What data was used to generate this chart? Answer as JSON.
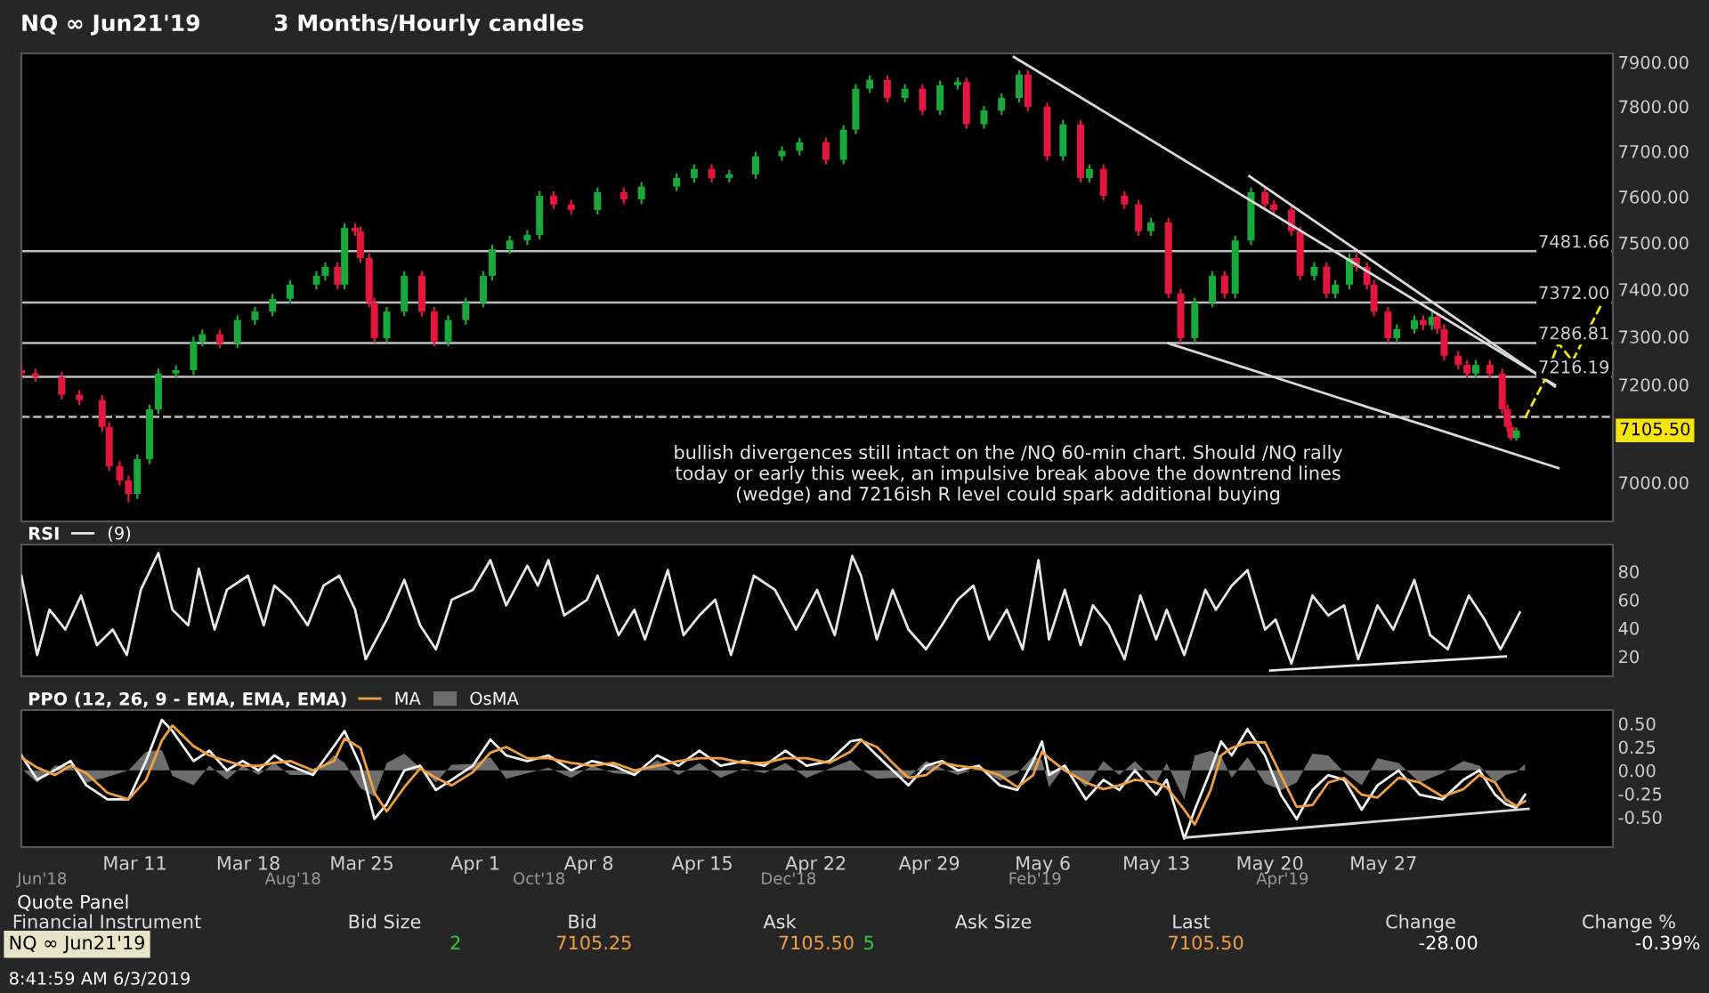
{
  "chart_data": [
    {
      "type": "candlestick",
      "title": "NQ ∞ Jun21'19",
      "subtitle": "3 Months/Hourly candles",
      "log": true,
      "tick_labels": "y",
      "x": [
        "2019-03-04T00:00",
        "2019-03-04T20:48",
        "2019-03-06T11:48",
        "2019-03-07T13:48",
        "2019-03-08T23:36",
        "2019-03-09T10:00",
        "2019-03-10T01:36",
        "2019-03-10T14:36",
        "2019-03-11T03:36",
        "2019-03-11T21:48",
        "2019-03-12T10:48",
        "2019-03-13T12:48",
        "2019-03-14T14:48",
        "2019-03-15T03:48",
        "2019-03-16T05:48",
        "2019-03-17T07:48",
        "2019-03-18T09:48",
        "2019-03-19T11:48",
        "2019-03-20T13:48",
        "2019-03-22T04:48",
        "2019-03-22T17:48",
        "2019-03-23T12:00",
        "2019-03-23T22:24",
        "2019-03-24T14:00",
        "2019-03-24T21:48",
        "2019-03-25T10:48",
        "2019-03-25T18:36",
        "2019-03-26T12:48",
        "2019-03-27T14:48",
        "2019-03-28T16:48",
        "2019-03-29T11:00",
        "2019-03-30T07:48",
        "2019-03-31T09:48",
        "2019-04-01T11:48",
        "2019-04-02T00:48",
        "2019-04-03T02:48",
        "2019-04-04T04:48",
        "2019-04-04T23:00",
        "2019-04-05T19:48",
        "2019-04-06T21:48",
        "2019-04-08T12:48",
        "2019-04-10T03:48",
        "2019-04-11T05:48",
        "2019-04-13T09:48",
        "2019-04-14T11:48",
        "2019-04-15T13:48",
        "2019-04-16T15:48",
        "2019-04-18T06:48",
        "2019-04-19T21:48",
        "2019-04-20T23:48",
        "2019-04-22T14:48",
        "2019-04-23T16:48",
        "2019-04-24T11:00",
        "2019-04-25T07:48",
        "2019-04-26T09:48",
        "2019-04-27T11:48",
        "2019-04-28T13:48",
        "2019-04-29T15:48",
        "2019-04-30T17:48",
        "2019-05-01T06:48",
        "2019-05-02T08:48",
        "2019-05-03T10:48",
        "2019-05-04T12:48",
        "2019-05-05T01:48",
        "2019-05-06T06:24",
        "2019-05-07T05:48",
        "2019-05-08T07:48",
        "2019-05-08T20:48",
        "2019-05-09T17:36",
        "2019-05-11T00:48",
        "2019-05-11T21:36",
        "2019-05-12T15:48",
        "2019-05-13T17:48",
        "2019-05-14T12:00",
        "2019-05-15T08:48",
        "2019-05-16T10:48",
        "2019-05-17T05:00",
        "2019-05-17T20:36",
        "2019-05-18T20:00",
        "2019-05-19T16:48",
        "2019-05-20T05:48",
        "2019-05-21T07:48",
        "2019-05-21T20:48",
        "2019-05-22T17:36",
        "2019-05-23T11:48",
        "2019-05-24T00:48",
        "2019-05-24T21:36",
        "2019-05-25T08:00",
        "2019-05-25T23:36",
        "2019-05-26T10:00",
        "2019-05-27T06:48",
        "2019-05-27T19:48",
        "2019-05-28T21:48",
        "2019-05-29T10:48",
        "2019-05-29T23:48",
        "2019-05-30T07:36",
        "2019-05-30T18:00",
        "2019-05-31T14:48",
        "2019-06-01T03:48",
        "2019-06-01T16:48",
        "2019-06-02T13:36",
        "2019-06-03T07:48",
        "2019-06-03T15:36",
        "2019-06-03T20:48",
        "2019-06-04T04:36"
      ],
      "ohlc": [
        [
          7230,
          7240,
          7213,
          7223
        ],
        [
          7223,
          7233,
          7206,
          7216
        ],
        [
          7216,
          7226,
          7169,
          7179
        ],
        [
          7179,
          7189,
          7158,
          7168
        ],
        [
          7168,
          7178,
          7103,
          7113
        ],
        [
          7113,
          7123,
          7023,
          7033
        ],
        [
          7033,
          7043,
          6994,
          7004
        ],
        [
          7004,
          7014,
          6960,
          6977
        ],
        [
          6977,
          7057,
          6967,
          7047
        ],
        [
          7047,
          7159,
          7037,
          7149
        ],
        [
          7149,
          7233,
          7139,
          7223
        ],
        [
          7223,
          7240,
          7213,
          7230
        ],
        [
          7230,
          7300,
          7220,
          7290
        ],
        [
          7290,
          7315,
          7280,
          7305
        ],
        [
          7305,
          7315,
          7276,
          7286
        ],
        [
          7286,
          7345,
          7276,
          7335
        ],
        [
          7335,
          7363,
          7325,
          7353
        ],
        [
          7353,
          7390,
          7343,
          7380
        ],
        [
          7380,
          7420,
          7370,
          7410
        ],
        [
          7410,
          7439,
          7400,
          7429
        ],
        [
          7429,
          7458,
          7419,
          7448
        ],
        [
          7448,
          7458,
          7400,
          7410
        ],
        [
          7410,
          7542,
          7400,
          7532
        ],
        [
          7532,
          7542,
          7515,
          7525
        ],
        [
          7525,
          7535,
          7457,
          7467
        ],
        [
          7467,
          7477,
          7362,
          7372
        ],
        [
          7372,
          7382,
          7287,
          7297
        ],
        [
          7297,
          7363,
          7287,
          7353
        ],
        [
          7353,
          7439,
          7343,
          7429
        ],
        [
          7429,
          7439,
          7343,
          7353
        ],
        [
          7353,
          7363,
          7280,
          7290
        ],
        [
          7290,
          7345,
          7280,
          7335
        ],
        [
          7335,
          7382,
          7325,
          7372
        ],
        [
          7372,
          7439,
          7362,
          7429
        ],
        [
          7429,
          7496,
          7419,
          7486
        ],
        [
          7486,
          7515,
          7476,
          7505
        ],
        [
          7505,
          7527,
          7495,
          7517
        ],
        [
          7517,
          7612,
          7507,
          7602
        ],
        [
          7602,
          7612,
          7573,
          7583
        ],
        [
          7583,
          7593,
          7561,
          7571
        ],
        [
          7571,
          7620,
          7561,
          7610
        ],
        [
          7610,
          7620,
          7584,
          7594
        ],
        [
          7594,
          7632,
          7584,
          7622
        ],
        [
          7622,
          7651,
          7612,
          7641
        ],
        [
          7641,
          7671,
          7631,
          7661
        ],
        [
          7661,
          7671,
          7631,
          7641
        ],
        [
          7641,
          7659,
          7631,
          7649
        ],
        [
          7649,
          7699,
          7639,
          7689
        ],
        [
          7689,
          7711,
          7679,
          7701
        ],
        [
          7701,
          7730,
          7691,
          7720
        ],
        [
          7720,
          7730,
          7671,
          7681
        ],
        [
          7681,
          7758,
          7671,
          7748
        ],
        [
          7748,
          7850,
          7738,
          7840
        ],
        [
          7840,
          7870,
          7830,
          7860
        ],
        [
          7860,
          7870,
          7809,
          7819
        ],
        [
          7819,
          7850,
          7809,
          7840
        ],
        [
          7840,
          7850,
          7781,
          7791
        ],
        [
          7791,
          7858,
          7781,
          7848
        ],
        [
          7848,
          7865,
          7838,
          7855
        ],
        [
          7855,
          7865,
          7750,
          7760
        ],
        [
          7760,
          7801,
          7750,
          7791
        ],
        [
          7791,
          7829,
          7781,
          7819
        ],
        [
          7819,
          7882,
          7809,
          7872
        ],
        [
          7872,
          7882,
          7789,
          7799
        ],
        [
          7799,
          7809,
          7679,
          7689
        ],
        [
          7689,
          7770,
          7679,
          7760
        ],
        [
          7760,
          7770,
          7631,
          7641
        ],
        [
          7641,
          7671,
          7631,
          7661
        ],
        [
          7661,
          7671,
          7592,
          7602
        ],
        [
          7602,
          7612,
          7573,
          7583
        ],
        [
          7583,
          7593,
          7515,
          7525
        ],
        [
          7525,
          7554,
          7515,
          7544
        ],
        [
          7544,
          7554,
          7381,
          7391
        ],
        [
          7391,
          7401,
          7287,
          7297
        ],
        [
          7297,
          7382,
          7287,
          7372
        ],
        [
          7372,
          7439,
          7362,
          7429
        ],
        [
          7429,
          7439,
          7381,
          7391
        ],
        [
          7391,
          7515,
          7381,
          7505
        ],
        [
          7505,
          7620,
          7495,
          7610
        ],
        [
          7610,
          7620,
          7573,
          7583
        ],
        [
          7583,
          7593,
          7561,
          7571
        ],
        [
          7571,
          7581,
          7515,
          7525
        ],
        [
          7525,
          7535,
          7419,
          7429
        ],
        [
          7429,
          7458,
          7419,
          7448
        ],
        [
          7448,
          7458,
          7381,
          7391
        ],
        [
          7391,
          7420,
          7381,
          7410
        ],
        [
          7410,
          7477,
          7400,
          7467
        ],
        [
          7467,
          7477,
          7438,
          7448
        ],
        [
          7448,
          7458,
          7400,
          7410
        ],
        [
          7410,
          7420,
          7343,
          7353
        ],
        [
          7353,
          7363,
          7287,
          7297
        ],
        [
          7297,
          7326,
          7287,
          7316
        ],
        [
          7316,
          7345,
          7306,
          7335
        ],
        [
          7335,
          7345,
          7314,
          7324
        ],
        [
          7324,
          7352,
          7314,
          7342
        ],
        [
          7342,
          7352,
          7306,
          7316
        ],
        [
          7316,
          7326,
          7250,
          7260
        ],
        [
          7260,
          7270,
          7231,
          7241
        ],
        [
          7241,
          7251,
          7213,
          7223
        ],
        [
          7223,
          7251,
          7213,
          7241
        ],
        [
          7241,
          7251,
          7213,
          7223
        ],
        [
          7223,
          7233,
          7139,
          7149
        ],
        [
          7149,
          7159,
          7103,
          7113
        ],
        [
          7113,
          7123,
          7085,
          7090
        ],
        [
          7090,
          7112,
          7085,
          7105.5
        ]
      ],
      "colors": [
        "#e3173e",
        "#e3173e",
        "#e3173e",
        "#e3173e",
        "#e3173e",
        "#e3173e",
        "#e3173e",
        "#e3173e",
        "#19a83a",
        "#19a83a",
        "#19a83a",
        "#19a83a",
        "#19a83a",
        "#19a83a",
        "#e3173e",
        "#19a83a",
        "#19a83a",
        "#19a83a",
        "#19a83a",
        "#19a83a",
        "#19a83a",
        "#e3173e",
        "#19a83a",
        "#e3173e",
        "#e3173e",
        "#e3173e",
        "#e3173e",
        "#19a83a",
        "#19a83a",
        "#e3173e",
        "#e3173e",
        "#19a83a",
        "#19a83a",
        "#19a83a",
        "#19a83a",
        "#19a83a",
        "#19a83a",
        "#19a83a",
        "#e3173e",
        "#e3173e",
        "#19a83a",
        "#e3173e",
        "#19a83a",
        "#19a83a",
        "#19a83a",
        "#e3173e",
        "#19a83a",
        "#19a83a",
        "#19a83a",
        "#19a83a",
        "#e3173e",
        "#19a83a",
        "#19a83a",
        "#19a83a",
        "#e3173e",
        "#19a83a",
        "#e3173e",
        "#19a83a",
        "#19a83a",
        "#e3173e",
        "#19a83a",
        "#19a83a",
        "#19a83a",
        "#e3173e",
        "#e3173e",
        "#19a83a",
        "#e3173e",
        "#19a83a",
        "#e3173e",
        "#e3173e",
        "#e3173e",
        "#19a83a",
        "#e3173e",
        "#e3173e",
        "#19a83a",
        "#19a83a",
        "#e3173e",
        "#19a83a",
        "#19a83a",
        "#e3173e",
        "#e3173e",
        "#e3173e",
        "#e3173e",
        "#19a83a",
        "#e3173e",
        "#19a83a",
        "#19a83a",
        "#e3173e",
        "#e3173e",
        "#e3173e",
        "#e3173e",
        "#19a83a",
        "#19a83a",
        "#e3173e",
        "#19a83a",
        "#e3173e",
        "#e3173e",
        "#e3173e",
        "#e3173e",
        "#19a83a",
        "#e3173e",
        "#e3173e",
        "#e3173e",
        "#e3173e",
        "#19a83a"
      ],
      "series": [
        {
          "type": "line",
          "color": "#d9d9d9",
          "x": [
            "2019-05-04T05:00",
            "2019-06-06T13:48"
          ],
          "values": [
            7912,
            7199
          ]
        },
        {
          "type": "line",
          "color": "#d9d9d9",
          "x": [
            "2019-05-18T17:24",
            "2019-06-06T13:48"
          ],
          "values": [
            7645,
            7196
          ]
        },
        {
          "type": "line",
          "color": "#d9d9d9",
          "x": [
            "2019-05-13T17:48",
            "2019-06-06T19:00"
          ],
          "values": [
            7286,
            7029
          ]
        },
        {
          "type": "line",
          "color": "#f5e50a",
          "line_style": "dashed",
          "x": [
            "2019-06-04T17:36",
            "2019-06-05T22:12",
            "2019-06-06T19:00",
            "2019-06-07T15:48",
            "2019-06-09T12:00"
          ],
          "values": [
            7131,
            7208,
            7286,
            7249,
            7372
          ]
        }
      ],
      "xlim": [
        "2019-03-04T00:00",
        "2019-06-10T03:36"
      ],
      "ylim": [
        6922,
        7920
      ],
      "yticks": [
        {
          "value": 7000,
          "label": "7000.00"
        },
        {
          "value": 7200,
          "label": "7200.00"
        },
        {
          "value": 7300,
          "label": "7300.00"
        },
        {
          "value": 7400,
          "label": "7400.00"
        },
        {
          "value": 7500,
          "label": "7500.00"
        },
        {
          "value": 7600,
          "label": "7600.00"
        },
        {
          "value": 7700,
          "label": "7700.00"
        },
        {
          "value": 7800,
          "label": "7800.00"
        },
        {
          "value": 7900,
          "label": "7900.00"
        }
      ],
      "ref_lines": [
        {
          "axis": "y",
          "value": 7481.66,
          "label": "7481.66",
          "color": "#bfbfbf"
        },
        {
          "axis": "y",
          "value": 7372.0,
          "label": "7372.00",
          "color": "#bfbfbf"
        },
        {
          "axis": "y",
          "value": 7286.81,
          "label": "7286.81",
          "color": "#bfbfbf"
        },
        {
          "axis": "y",
          "value": 7216.19,
          "label": "7216.19",
          "color": "#bfbfbf"
        },
        {
          "axis": "y",
          "value": 7133.5,
          "color": "#bfbfbf",
          "line_style": "dashed"
        }
      ],
      "annotations": [
        "bullish divergences still intact on the /NQ 60-min chart. Should /NQ rally\ntoday or early this week, an impulsive break above the downtrend lines\n(wedge) and 7216ish R level could spark additional buying",
        "7105.50"
      ]
    },
    {
      "type": "line",
      "title": "RSI",
      "tick_labels": "y",
      "legend": "top left",
      "series": [
        {
          "name": "(9)",
          "color": "#e6e6e6",
          "x": [
            "2019-03-04T00:00",
            "2019-03-04T23:24",
            "2019-03-05T17:36",
            "2019-03-06T17:00",
            "2019-03-07T16:24",
            "2019-03-08T15:48",
            "2019-03-09T15:12",
            "2019-03-10T12:00",
            "2019-03-11T08:48",
            "2019-03-12T10:48",
            "2019-03-13T07:36",
            "2019-03-14T07:00",
            "2019-03-14T22:36",
            "2019-03-15T22:00",
            "2019-03-16T16:12",
            "2019-03-17T23:24",
            "2019-03-18T22:48",
            "2019-03-19T14:24",
            "2019-03-20T13:48",
            "2019-03-21T15:48",
            "2019-03-22T15:12",
            "2019-03-23T14:36",
            "2019-03-24T14:00",
            "2019-03-25T05:36",
            "2019-03-26T12:48",
            "2019-03-27T14:48",
            "2019-03-28T14:12",
            "2019-03-29T13:36",
            "2019-03-30T13:00",
            "2019-03-31T20:12",
            "2019-04-01T22:12",
            "2019-04-02T21:36",
            "2019-04-04T04:48",
            "2019-04-04T20:24",
            "2019-04-05T12:00",
            "2019-04-06T11:24",
            "2019-04-07T21:12",
            "2019-04-08T12:48",
            "2019-04-09T20:00",
            "2019-04-10T19:24",
            "2019-04-11T11:00",
            "2019-04-12T20:48",
            "2019-04-13T20:12",
            "2019-04-14T19:36",
            "2019-04-15T19:00",
            "2019-04-16T18:24",
            "2019-04-18T04:12",
            "2019-04-19T11:24",
            "2019-04-20T18:36",
            "2019-04-22T01:48",
            "2019-04-23T03:48",
            "2019-04-24T05:48",
            "2019-04-24T18:48",
            "2019-04-25T18:12",
            "2019-04-26T17:36",
            "2019-04-27T17:00",
            "2019-04-28T19:00",
            "2019-04-29T18:24",
            "2019-04-30T17:48",
            "2019-05-01T17:12",
            "2019-05-02T16:36",
            "2019-05-03T18:36",
            "2019-05-04T18:00",
            "2019-05-05T17:24",
            "2019-05-06T09:00",
            "2019-05-07T08:24",
            "2019-05-08T07:48",
            "2019-05-09T02:00",
            "2019-05-10T01:24",
            "2019-05-11T00:48",
            "2019-05-12T00:12",
            "2019-05-12T23:36",
            "2019-05-13T15:12",
            "2019-05-14T17:12",
            "2019-05-16T00:24",
            "2019-05-16T16:00",
            "2019-05-17T15:24",
            "2019-05-18T14:48",
            "2019-05-19T16:48",
            "2019-05-20T08:24",
            "2019-05-21T07:48",
            "2019-05-22T15:00",
            "2019-05-23T14:24",
            "2019-05-24T13:48",
            "2019-05-25T10:36",
            "2019-05-26T15:12",
            "2019-05-27T14:36",
            "2019-05-28T21:48",
            "2019-05-29T21:12",
            "2019-05-30T23:12",
            "2019-06-01T06:24",
            "2019-06-02T05:48",
            "2019-06-03T05:12",
            "2019-06-03T20:48",
            "2019-06-04T09:48"
          ],
          "values": [
            77,
            21,
            53,
            39,
            63,
            28,
            39,
            21,
            67,
            93,
            53,
            42,
            82,
            39,
            67,
            77,
            42,
            70,
            60,
            42,
            70,
            77,
            53,
            18,
            46,
            74,
            42,
            25,
            60,
            67,
            88,
            56,
            84,
            70,
            88,
            49,
            60,
            77,
            35,
            53,
            32,
            81,
            35,
            49,
            60,
            21,
            77,
            67,
            39,
            67,
            35,
            91,
            77,
            32,
            67,
            39,
            25,
            42,
            60,
            70,
            32,
            53,
            25,
            88,
            32,
            67,
            28,
            56,
            42,
            18,
            63,
            32,
            53,
            21,
            67,
            53,
            70,
            81,
            39,
            46,
            15,
            63,
            49,
            56,
            18,
            56,
            39,
            74,
            35,
            25,
            63,
            46,
            25,
            39,
            51
          ]
        },
        {
          "type": "line",
          "color": "#e6e6e6",
          "x": [
            "2019-05-20T00:36",
            "2019-06-03T13:00"
          ],
          "values": [
            10,
            20
          ]
        }
      ],
      "xlim": [
        "2019-03-04T00:00",
        "2019-06-10T03:36"
      ],
      "ylim": [
        6,
        99
      ],
      "yticks": [
        20,
        40,
        60,
        80
      ]
    },
    {
      "type": "line",
      "title": "PPO (12, 26, 9 - EMA, EMA, EMA)",
      "legend": "top left",
      "x": [
        "2019-03-04T00:00",
        "2019-03-04T23:24",
        "2019-03-06T01:24",
        "2019-03-07T00:48",
        "2019-03-08T00:12",
        "2019-03-09T07:24",
        "2019-03-10T14:36",
        "2019-03-11T16:36",
        "2019-03-12T16:00",
        "2019-03-13T07:36",
        "2019-03-14T14:48",
        "2019-03-15T14:12",
        "2019-03-16T16:12",
        "2019-03-17T15:36",
        "2019-03-18T15:00",
        "2019-03-19T14:24",
        "2019-03-20T13:48",
        "2019-03-21T23:36",
        "2019-03-23T06:48",
        "2019-03-23T22:24",
        "2019-03-24T21:48",
        "2019-03-25T18:36",
        "2019-03-26T12:48",
        "2019-03-27T14:48",
        "2019-03-28T14:12",
        "2019-03-29T13:36",
        "2019-03-30T13:00",
        "2019-03-31T20:12",
        "2019-04-01T22:12",
        "2019-04-02T21:36",
        "2019-04-04T04:48",
        "2019-04-05T12:00",
        "2019-04-06T21:48",
        "2019-04-08T05:00",
        "2019-04-09T12:12",
        "2019-04-10T19:24",
        "2019-04-12T05:12",
        "2019-04-13T12:24",
        "2019-04-14T19:36",
        "2019-04-16T02:48",
        "2019-04-17T12:36",
        "2019-04-18T19:48",
        "2019-04-20T03:00",
        "2019-04-21T10:12",
        "2019-04-22T20:00",
        "2019-04-24T03:12",
        "2019-04-24T18:48",
        "2019-04-25T18:12",
        "2019-04-26T17:36",
        "2019-04-27T17:00",
        "2019-04-28T19:00",
        "2019-04-29T18:24",
        "2019-04-30T17:48",
        "2019-05-02T01:00",
        "2019-05-03T08:12",
        "2019-05-04T10:12",
        "2019-05-05T09:36",
        "2019-05-05T22:36",
        "2019-05-06T09:00",
        "2019-05-07T08:24",
        "2019-05-08T15:36",
        "2019-05-09T17:36",
        "2019-05-10T17:00",
        "2019-05-11T16:24",
        "2019-05-12T23:36",
        "2019-05-13T15:12",
        "2019-05-14T17:12",
        "2019-05-15T08:48",
        "2019-05-16T08:12",
        "2019-05-16T23:48",
        "2019-05-17T15:24",
        "2019-05-18T14:48",
        "2019-05-19T16:48",
        "2019-05-20T16:12",
        "2019-05-21T15:36",
        "2019-05-22T15:00",
        "2019-05-23T14:24",
        "2019-05-24T13:48",
        "2019-05-25T15:48",
        "2019-05-26T15:12",
        "2019-05-27T22:24",
        "2019-05-29T05:36",
        "2019-05-30T15:24",
        "2019-05-31T22:36",
        "2019-06-01T22:00",
        "2019-06-02T21:24",
        "2019-06-03T13:00",
        "2019-06-04T04:36",
        "2019-06-04T17:36"
      ],
      "series": [
        {
          "color": "#f2f2f2",
          "values": [
            0.16,
            -0.1,
            0,
            0.1,
            -0.16,
            -0.31,
            -0.31,
            0.1,
            0.54,
            0.42,
            0.1,
            0.21,
            0,
            0.1,
            0,
            0.16,
            0.05,
            -0.05,
            0.26,
            0.42,
            0.05,
            -0.52,
            -0.36,
            0,
            0.05,
            -0.21,
            -0.1,
            0.05,
            0.33,
            0.16,
            0.1,
            0.16,
            0,
            0.1,
            0.05,
            -0.05,
            0.16,
            0.05,
            0.21,
            0.05,
            0.1,
            0.05,
            0.21,
            0.05,
            0.1,
            0.31,
            0.33,
            0.16,
            0,
            -0.16,
            0.05,
            0.1,
            0,
            0.05,
            -0.16,
            -0.21,
            0.1,
            0.31,
            -0.05,
            0.05,
            -0.31,
            -0.1,
            -0.21,
            0,
            -0.26,
            -0.1,
            -0.73,
            -0.42,
            0,
            0.31,
            0.16,
            0.44,
            0.16,
            -0.26,
            -0.52,
            -0.21,
            -0.05,
            -0.1,
            -0.42,
            -0.16,
            0,
            -0.26,
            -0.31,
            -0.1,
            0,
            -0.26,
            -0.36,
            -0.4,
            -0.26
          ]
        },
        {
          "name": "MA",
          "color": "#f0a040",
          "values": [
            0.14,
            0.03,
            -0.05,
            0.05,
            -0.03,
            -0.24,
            -0.31,
            -0.1,
            0.32,
            0.48,
            0.26,
            0.16,
            0.1,
            0.05,
            0.05,
            0.08,
            0.1,
            0,
            0.1,
            0.34,
            0.24,
            -0.24,
            -0.44,
            -0.18,
            0.02,
            -0.08,
            -0.16,
            -0.02,
            0.19,
            0.25,
            0.13,
            0.13,
            0.08,
            0.05,
            0.08,
            0,
            0.05,
            0.1,
            0.13,
            0.13,
            0.08,
            0.08,
            0.13,
            0.13,
            0.08,
            0.2,
            0.32,
            0.25,
            0.08,
            -0.08,
            -0.05,
            0.08,
            0.05,
            0.02,
            -0.05,
            -0.18,
            -0.05,
            0.2,
            0.13,
            0,
            -0.13,
            -0.2,
            -0.16,
            -0.1,
            -0.13,
            -0.18,
            -0.42,
            -0.58,
            -0.21,
            0.16,
            0.24,
            0.3,
            0.3,
            -0.05,
            -0.39,
            -0.37,
            -0.13,
            -0.08,
            -0.26,
            -0.29,
            -0.08,
            -0.13,
            -0.28,
            -0.2,
            -0.05,
            -0.13,
            -0.31,
            -0.38,
            -0.33
          ]
        },
        {
          "name": "OsMA",
          "type": "area",
          "color": "#6e6e6e",
          "values": [
            0.02,
            -0.13,
            0.05,
            0.05,
            -0.13,
            -0.07,
            0,
            0.2,
            0.22,
            -0.06,
            -0.16,
            0.05,
            -0.1,
            0.05,
            -0.05,
            0.08,
            -0.05,
            -0.05,
            0.16,
            0.08,
            -0.19,
            -0.28,
            0.08,
            0.18,
            0.03,
            -0.13,
            0.06,
            0.07,
            0.14,
            -0.09,
            -0.03,
            0.03,
            -0.08,
            0.05,
            -0.03,
            -0.05,
            0.11,
            -0.05,
            0.08,
            -0.08,
            0.02,
            -0.03,
            0.08,
            -0.08,
            0.02,
            0.11,
            0.01,
            -0.09,
            -0.08,
            -0.08,
            0.1,
            0.02,
            -0.05,
            0.03,
            -0.11,
            -0.03,
            0.15,
            0.11,
            -0.18,
            0.05,
            -0.18,
            0.1,
            -0.05,
            0.1,
            -0.13,
            0.08,
            -0.31,
            0.16,
            0.21,
            0.15,
            -0.08,
            0.14,
            -0.14,
            -0.21,
            -0.13,
            0.18,
            0.16,
            -0.02,
            -0.16,
            0.13,
            0.08,
            -0.13,
            -0.03,
            0.1,
            0.05,
            -0.13,
            -0.05,
            -0.02,
            0.07
          ]
        },
        {
          "type": "line",
          "color": "#d9d9d9",
          "x": [
            "2019-05-14T17:12",
            "2019-06-04T22:48"
          ],
          "values": [
            -0.72,
            -0.41
          ]
        }
      ],
      "xlim": [
        "2019-03-04T00:00",
        "2019-06-10T03:36"
      ],
      "ylim": [
        -0.82,
        0.645
      ],
      "xticks": [
        {
          "value": "2019-03-11",
          "label": "Mar 11"
        },
        {
          "value": "2019-03-18",
          "label": "Mar 18"
        },
        {
          "value": "2019-03-25",
          "label": "Mar 25"
        },
        {
          "value": "2019-04-01",
          "label": "Apr 1"
        },
        {
          "value": "2019-04-08",
          "label": "Apr 8"
        },
        {
          "value": "2019-04-15",
          "label": "Apr 15"
        },
        {
          "value": "2019-04-22",
          "label": "Apr 22"
        },
        {
          "value": "2019-04-29",
          "label": "Apr 29"
        },
        {
          "value": "2019-05-06",
          "label": "May 6"
        },
        {
          "value": "2019-05-13",
          "label": "May 13"
        },
        {
          "value": "2019-05-20",
          "label": "May 20"
        },
        {
          "value": "2019-05-27",
          "label": "May 27"
        }
      ],
      "yticks": [
        {
          "value": 0.5,
          "label": "0.50"
        },
        {
          "value": 0.25,
          "label": "0.25"
        },
        {
          "value": 0,
          "label": "0.00"
        },
        {
          "value": -0.25,
          "label": "-0.25"
        },
        {
          "value": -0.5,
          "label": "-0.50"
        }
      ]
    },
    {
      "type": "other",
      "title": "Quote Panel",
      "annotations": [
        "Financial Instrument",
        "Bid Size",
        "Bid",
        "Ask",
        "Ask Size",
        "Last",
        "Change",
        "Change %",
        "NQ ∞ Jun21'19",
        "2",
        "7105.25",
        "7105.50",
        "5",
        "7105.50",
        "-28.00",
        "-0.39%",
        "8:41:59 AM 6/3/2019",
        "Jun'18",
        "Aug'18",
        "Oct'18",
        "Dec'18",
        "Feb'19",
        "Apr'19"
      ]
    }
  ]
}
